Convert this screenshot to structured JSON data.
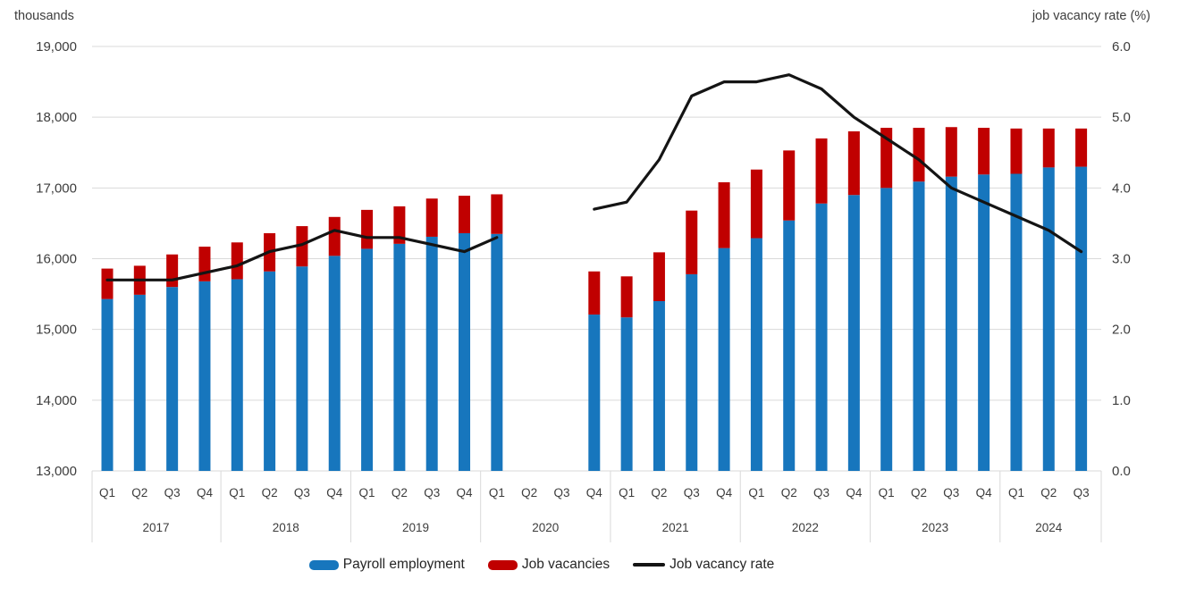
{
  "axis_titles": {
    "left": "thousands",
    "right": "job vacancy rate (%)"
  },
  "left_axis": {
    "tick_labels": [
      "19,000",
      "18,000",
      "17,000",
      "16,000",
      "15,000",
      "14,000",
      "13,000"
    ],
    "min": 13000,
    "max": 19000
  },
  "right_axis": {
    "tick_labels": [
      "6.0",
      "5.0",
      "4.0",
      "3.0",
      "2.0",
      "1.0",
      "0.0"
    ],
    "min": 0,
    "max": 6
  },
  "colors": {
    "payroll_bar": "#1776bd",
    "vacancies_bar": "#c00000",
    "rate_line": "#141414",
    "gridline": "#d9d9d9",
    "axis_text": "#3d3d3d"
  },
  "legend": {
    "items": [
      {
        "label": "Payroll employment",
        "swatch": "box",
        "color": "#1776bd"
      },
      {
        "label": "Job vacancies",
        "swatch": "box",
        "color": "#c00000"
      },
      {
        "label": "Job vacancy rate",
        "swatch": "line",
        "color": "#141414"
      }
    ]
  },
  "chart_data": {
    "type": "bar+line",
    "description": "Stacked columns (payroll employment + job vacancies, left axis in thousands) with job vacancy rate line on right axis (%); quarterly, no data for 2020 Q2 and 2020 Q3",
    "categories": [
      "2017 Q1",
      "2017 Q2",
      "2017 Q3",
      "2017 Q4",
      "2018 Q1",
      "2018 Q2",
      "2018 Q3",
      "2018 Q4",
      "2019 Q1",
      "2019 Q2",
      "2019 Q3",
      "2019 Q4",
      "2020 Q1",
      "2020 Q2",
      "2020 Q3",
      "2020 Q4",
      "2021 Q1",
      "2021 Q2",
      "2021 Q3",
      "2021 Q4",
      "2022 Q1",
      "2022 Q2",
      "2022 Q3",
      "2022 Q4",
      "2023 Q1",
      "2023 Q2",
      "2023 Q3",
      "2023 Q4",
      "2024 Q1",
      "2024 Q2",
      "2024 Q3"
    ],
    "year_groups": [
      {
        "label": "2017",
        "count": 4
      },
      {
        "label": "2018",
        "count": 4
      },
      {
        "label": "2019",
        "count": 4
      },
      {
        "label": "2020",
        "count": 4
      },
      {
        "label": "2021",
        "count": 4
      },
      {
        "label": "2022",
        "count": 4
      },
      {
        "label": "2023",
        "count": 4
      },
      {
        "label": "2024",
        "count": 3
      }
    ],
    "series": [
      {
        "name": "Payroll employment",
        "kind": "bar-stack",
        "axis": "left",
        "unit": "thousands",
        "color": "#1776bd",
        "values": [
          15430,
          15490,
          15600,
          15680,
          15710,
          15820,
          15890,
          16040,
          16140,
          16210,
          16310,
          16360,
          16350,
          null,
          null,
          15210,
          15170,
          15400,
          15780,
          16150,
          16290,
          16540,
          16780,
          16900,
          17000,
          17090,
          17160,
          17190,
          17200,
          17290,
          17300
        ]
      },
      {
        "name": "Job vacancies",
        "kind": "bar-stack",
        "axis": "left",
        "unit": "thousands",
        "color": "#c00000",
        "values": [
          430,
          410,
          460,
          490,
          520,
          540,
          570,
          550,
          550,
          530,
          540,
          530,
          560,
          null,
          null,
          610,
          580,
          690,
          900,
          930,
          970,
          990,
          920,
          900,
          850,
          760,
          700,
          660,
          640,
          550,
          540
        ]
      },
      {
        "name": "Job vacancy rate",
        "kind": "line",
        "axis": "right",
        "unit": "%",
        "color": "#141414",
        "values": [
          2.7,
          2.7,
          2.7,
          2.8,
          2.9,
          3.1,
          3.2,
          3.4,
          3.3,
          3.3,
          3.2,
          3.1,
          3.3,
          null,
          null,
          3.7,
          3.8,
          4.4,
          5.3,
          5.5,
          5.5,
          5.6,
          5.4,
          5.0,
          4.7,
          4.4,
          4.0,
          3.8,
          3.6,
          3.4,
          3.1
        ]
      }
    ],
    "left_ylim": [
      13000,
      19000
    ],
    "right_ylim": [
      0.0,
      6.0
    ],
    "grid": true,
    "legend_position": "bottom"
  }
}
